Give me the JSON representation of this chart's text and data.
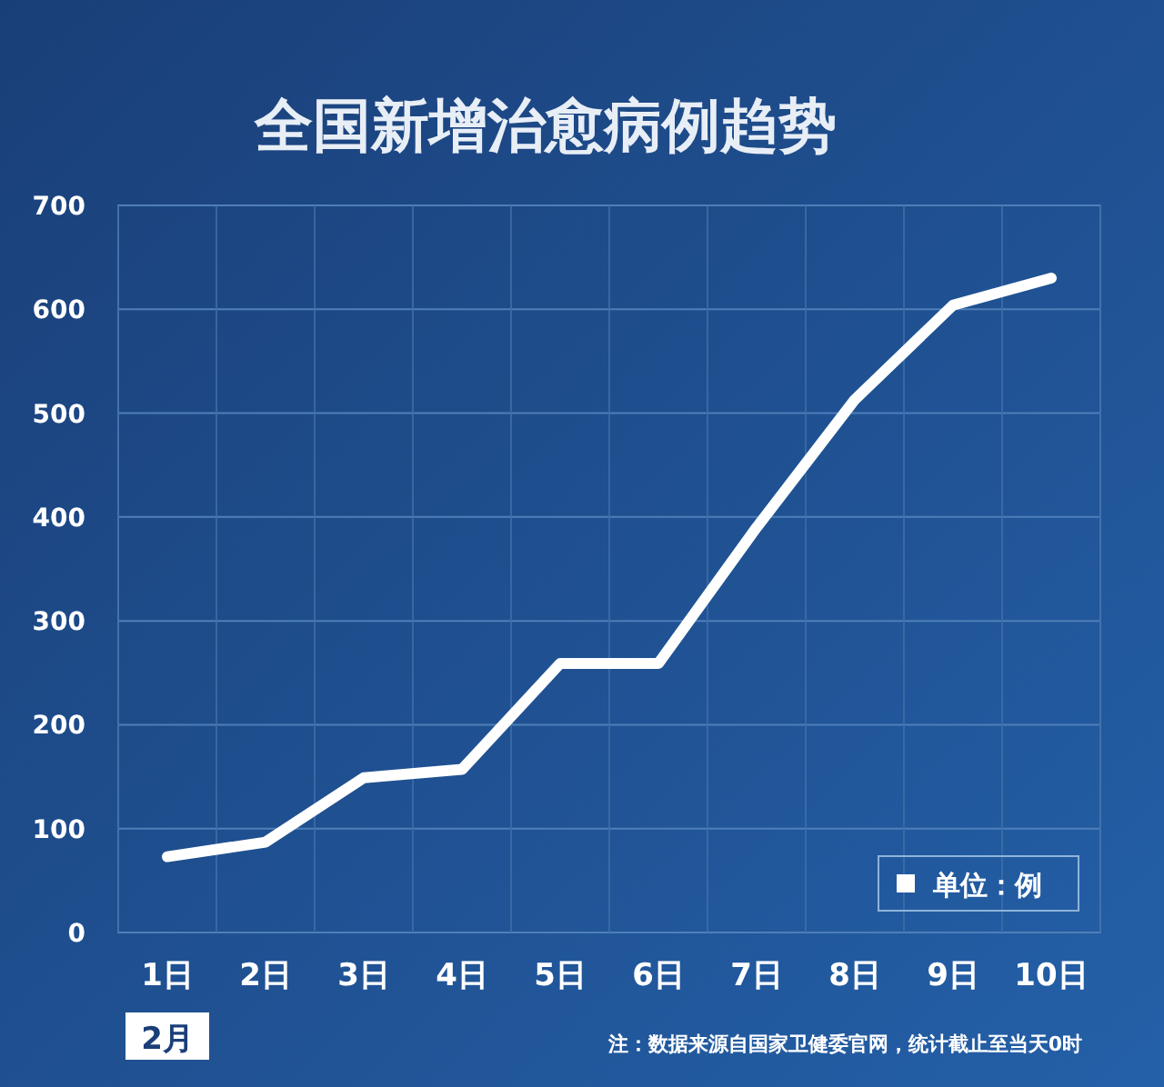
{
  "chart_data": {
    "type": "line",
    "title": "全国新增治愈病例趋势",
    "xlabel": "2月",
    "categories": [
      "1日",
      "2日",
      "3日",
      "4日",
      "5日",
      "6日",
      "7日",
      "8日",
      "9日",
      "10日"
    ],
    "series": [
      {
        "name": "单位：例",
        "color": "#ffffff",
        "values": [
          73,
          87,
          149,
          157,
          259,
          259,
          390,
          513,
          604,
          630
        ]
      }
    ],
    "ylim": [
      0,
      700
    ],
    "yticks": [
      0,
      100,
      200,
      300,
      400,
      500,
      600,
      700
    ],
    "grid": true,
    "legend": "bottom right",
    "marker": "none",
    "line_style": "solid",
    "annotations": [
      "注：数据来源自国家卫健委官网，统计截止至当天0时"
    ]
  }
}
